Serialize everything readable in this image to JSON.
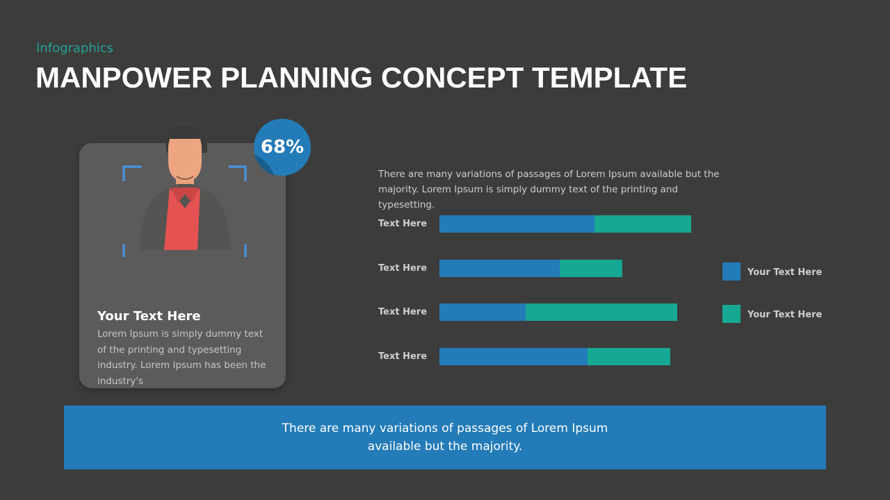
{
  "header": {
    "subtitle": "Infographics",
    "title": "MANPOWER PLANNING CONCEPT TEMPLATE"
  },
  "profile_card": {
    "badge": "68%",
    "heading": "Your Text Here",
    "body": "Lorem Ipsum is simply dummy text of the printing and typesetting industry. Lorem Ipsum has been the industry's",
    "icon": "person-avatar-icon"
  },
  "intro_text": "There are many variations of passages of Lorem Ipsum available but the majority. Lorem Ipsum is simply dummy text of the printing and typesetting.",
  "footer_text": "There are many variations of passages of Lorem Ipsum available but the majority.",
  "colors": {
    "background": "#3c3c3c",
    "series1": "#237bb8",
    "series2": "#17a893",
    "accent_subtitle": "#22a394",
    "card": "#5b5b5b",
    "shirt": "#e55252"
  },
  "chart_data": {
    "type": "bar",
    "orientation": "horizontal",
    "stacked": true,
    "title": "",
    "xlabel": "",
    "ylabel": "",
    "categories": [
      "Text Here",
      "Text Here",
      "Text Here",
      "Text Here"
    ],
    "series": [
      {
        "name": "Your Text Here",
        "color": "#237bb8",
        "values": [
          223,
          173,
          124,
          213
        ]
      },
      {
        "name": "Your Text Here",
        "color": "#17a893",
        "values": [
          139,
          90,
          218,
          119
        ]
      }
    ],
    "grid": false,
    "axes_visible": false,
    "legend_position": "right"
  }
}
